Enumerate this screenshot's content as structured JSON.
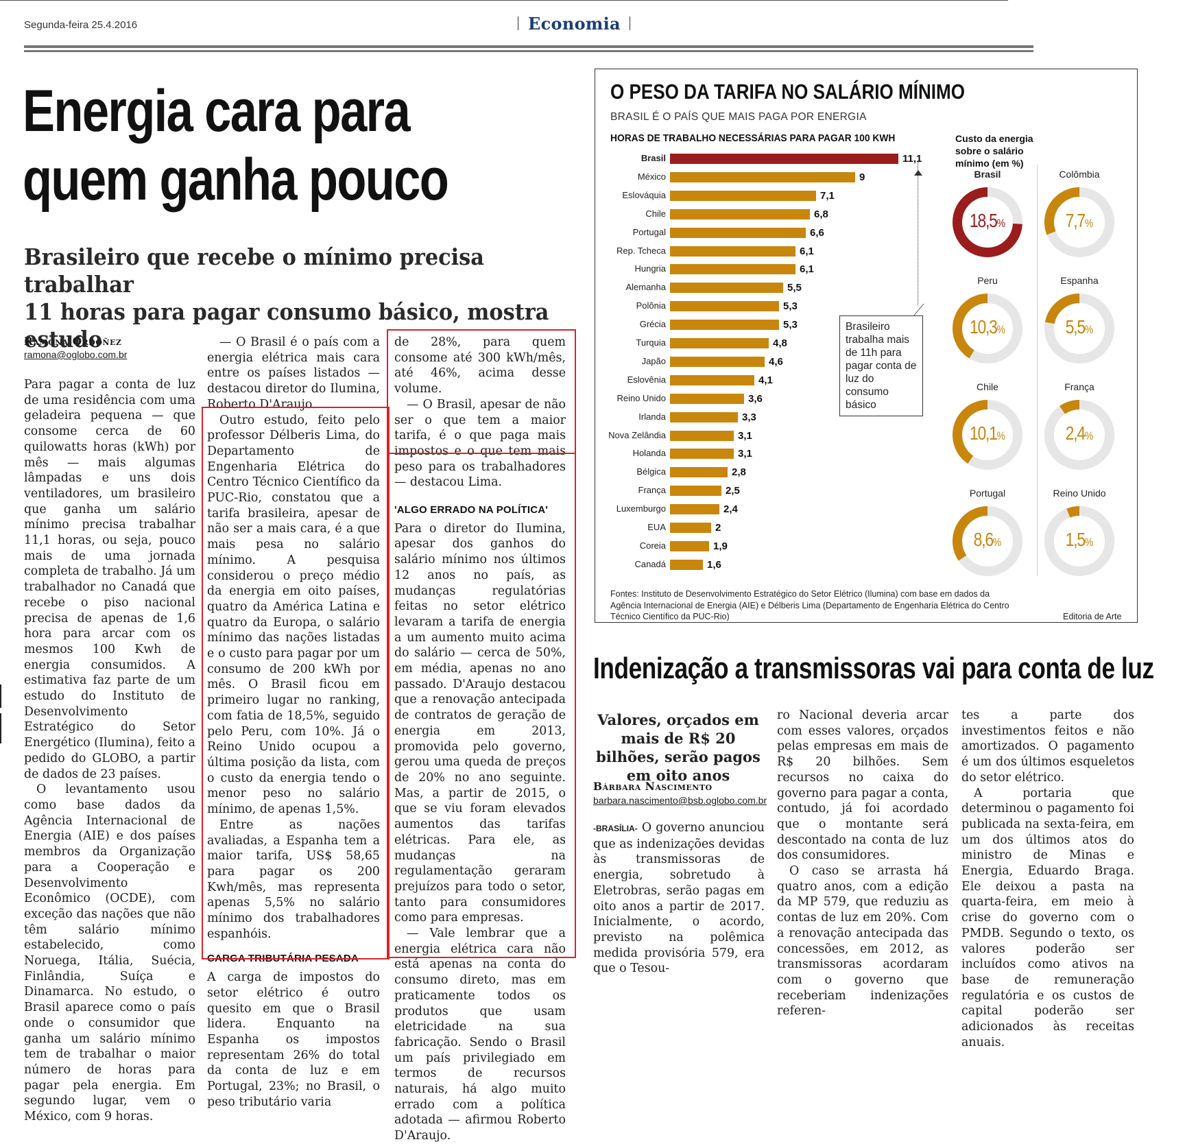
{
  "header": {
    "date": "Segunda-feira 25.4.2016",
    "section": "Economia"
  },
  "main_article": {
    "headline_line1": "Energia cara para",
    "headline_line2": "quem ganha pouco",
    "deck_line1": "Brasileiro que recebe o mínimo precisa trabalhar",
    "deck_line2": "11 horas para pagar consumo básico, mostra estudo",
    "author": "Ramona Ordoñez",
    "email": "ramona@oglobo.com.br",
    "col1_p1": "Para pagar a conta de luz de uma residência com uma geladeira pequena — que consome cerca de 60 quilowatts horas (kWh) por mês — mais algumas lâmpadas e uns dois ventiladores, um brasileiro que ganha um salário mínimo precisa trabalhar 11,1 horas, ou seja, pouco mais de uma jornada completa de trabalho. Já um trabalhador no Canadá que recebe o piso nacional precisa de apenas de 1,6 hora para arcar com os mesmos 100 Kwh de energia consumidos. A estimativa faz parte de um estudo do Instituto de Desenvolvimento Estratégico do Setor Energético (Ilumina), feito a pedido do GLOBO, a partir de dados de 23 países.",
    "col1_p2": "O levantamento usou como base dados da Agência Internacional de Energia (AIE) e dos países membros da Organização para a Cooperação e Desenvolvimento Econômico (OCDE), com exceção das nações que não têm salário mínimo estabelecido, como Noruega, Itália, Suécia, Finlândia, Suíça e Dinamarca. No estudo, o Brasil aparece como o país onde o consumidor que ganha um salário mínimo tem de trabalhar o maior número de horas para pagar pela energia. Em segundo lugar, vem o México, com 9 horas.",
    "col2_p1": "— O Brasil é o país com a energia elétrica mais cara entre os países listados — destacou diretor do Ilumina, Roberto D'Araujo.",
    "col2_p2": "Outro estudo, feito pelo professor Délberis Lima, do Departamento de Engenharia Elétrica do Centro Técnico Científico da PUC-Rio, constatou que a tarifa brasileira, apesar de não ser a mais cara, é a que mais pesa no salário mínimo. A pesquisa considerou o preço médio da energia em oito países, quatro da América Latina e quatro da Europa, o salário mínimo das nações listadas e o custo para pagar por um consumo de 200 kWh por mês. O Brasil ficou em primeiro lugar no ranking, com fatia de 18,5%, seguido pelo Peru, com 10%. Já o Reino Unido ocupou a última posição da lista, com o custo da energia tendo o menor peso no salário mínimo, de apenas 1,5%.",
    "col2_p3": "Entre as nações avaliadas, a Espanha tem a maior tarifa, US$ 58,65 para pagar os 200 Kwh/mês, mas representa apenas 5,5% no salário mínimo dos trabalhadores espanhóis.",
    "col2_subhead": "CARGA TRIBUTÁRIA PESADA",
    "col2_p4": "A carga de impostos do setor elétrico é outro quesito em que o Brasil lidera. Enquanto na Espanha os impostos representam 26% do total da conta de luz e em Portugal, 23%; no Brasil, o peso tributário varia",
    "col3_p1": "de 28%, para quem consome até 300 kWh/mês, até 46%, acima desse volume.",
    "col3_p2": "— O Brasil, apesar de não ser o que tem a maior tarifa, é o que paga mais impostos e o que tem mais peso para os trabalhadores — destacou Lima.",
    "col3_subhead": "'ALGO ERRADO NA POLÍTICA'",
    "col3_p3": "Para o diretor do Ilumina, apesar dos ganhos do salário mínimo nos últimos 12 anos no país, as mudanças regulatórias feitas no setor elétrico levaram a tarifa de energia a um aumento muito acima do salário — cerca de 50%, em média, apenas no ano passado. D'Araujo destacou que a renovação antecipada de contratos de geração de energia em 2013, promovida pelo governo, gerou uma queda de preços de 20% no ano seguinte. Mas, a partir de 2015, o que se viu foram elevados aumentos das tarifas elétricas. Para ele, as mudanças na regulamentação geraram prejuízos para todo o setor, tanto para consumidores como para empresas.",
    "col3_p4": "— Vale lembrar que a energia elétrica cara não está apenas na conta do consumo direto, mas em praticamente todos os produtos que usam eletricidade na sua fabricação. Sendo o Brasil um país privilegiado em termos de recursos naturais, há algo muito errado com a política adotada — afirmou Roberto D'Araujo."
  },
  "infographic": {
    "title": "O PESO DA TARIFA NO SALÁRIO MÍNIMO",
    "subtitle": "BRASIL É O PAÍS QUE MAIS PAGA POR ENERGIA",
    "bar_heading": "HORAS DE TRABALHO NECESSÁRIAS PARA PAGAR 100 KWH",
    "callout": "Brasileiro trabalha mais de 11h para pagar conta de luz do consumo básico",
    "donut_heading": "Custo da energia sobre o salário mínimo (em %)",
    "sources": "Fontes: Instituto de Desenvolvimento Estratégico do Setor Elétrico (Ilumina) com base em dados da Agência Internacional de Energia (AIE) e Délberis Lima (Departamento de Engenharia Elétrica do Centro Técnico Científico da PUC-Rio)",
    "credit": "Editoria de Arte",
    "colors": {
      "highlight": "#9b1c1c",
      "bar": "#c8860d",
      "ring": "#e6e6e6"
    }
  },
  "chart_data": [
    {
      "type": "bar",
      "title": "HORAS DE TRABALHO NECESSÁRIAS PARA PAGAR 100 KWH",
      "orientation": "horizontal",
      "categories": [
        "Brasil",
        "México",
        "Eslováquia",
        "Chile",
        "Portugal",
        "Rep. Tcheca",
        "Hungria",
        "Alemanha",
        "Polônia",
        "Grécia",
        "Turquia",
        "Japão",
        "Eslovênia",
        "Reino Unido",
        "Irlanda",
        "Nova Zelândia",
        "Holanda",
        "Bélgica",
        "França",
        "Luxemburgo",
        "EUA",
        "Coreia",
        "Canadá"
      ],
      "values": [
        11.1,
        9,
        7.1,
        6.8,
        6.6,
        6.1,
        6.1,
        5.5,
        5.3,
        5.3,
        4.8,
        4.6,
        4.1,
        3.6,
        3.3,
        3.1,
        3.1,
        2.8,
        2.5,
        2.4,
        2,
        1.9,
        1.6
      ],
      "value_labels": [
        "11,1",
        "9",
        "7,1",
        "6,8",
        "6,6",
        "6,1",
        "6,1",
        "5,5",
        "5,3",
        "5,3",
        "4,8",
        "4,6",
        "4,1",
        "3,6",
        "3,3",
        "3,1",
        "3,1",
        "2,8",
        "2,5",
        "2,4",
        "2",
        "1,9",
        "1,6"
      ],
      "grid": false
    },
    {
      "type": "pie",
      "title": "Custo da energia sobre o salário mínimo (em %)",
      "categories": [
        "Brasil",
        "Colômbia",
        "Peru",
        "Espanha",
        "Chile",
        "França",
        "Portugal",
        "Reino Unido"
      ],
      "values": [
        18.5,
        7.7,
        10.3,
        5.5,
        10.1,
        2.4,
        8.6,
        1.5
      ],
      "value_labels": [
        "18,5",
        "7,7",
        "10,3",
        "5,5",
        "10,1",
        "2,4",
        "8,6",
        "1,5"
      ],
      "unit": "%"
    }
  ],
  "second_article": {
    "headline": "Indenização a transmissoras vai para conta de luz",
    "deck": "Valores, orçados em mais de R$ 20 bilhões, serão pagos em oito anos",
    "author": "Bárbara Nascimento",
    "email": "barbara.nascimento@bsb.oglobo.com.br",
    "dateline": "-BRASÍLIA-",
    "col1_p1": "O governo anunciou que as indenizações devidas às transmissoras de energia, sobretudo à Eletrobras, serão pagas em oito anos a partir de 2017. Inicialmente, o acordo, previsto na polêmica medida provisória 579, era que o Tesou-",
    "col2_p1": "ro Nacional deveria arcar com esses valores, orçados pelas empresas em mais de R$ 20 bilhões. Sem recursos no caixa do governo para pagar a conta, contudo, já foi acordado que o montante será descontado na conta de luz dos consumidores.",
    "col2_p2": "O caso se arrasta há quatro anos, com a edição da MP 579, que reduziu as contas de luz em 20%. Com a renovação antecipada das concessões, em 2012, as transmissoras acordaram com o governo que receberiam indenizações referen-",
    "col3_p1": "tes a parte dos investimentos feitos e não amortizados. O pagamento é um dos últimos esqueletos do setor elétrico.",
    "col3_p2": "A portaria que determinou o pagamento foi publicada na sexta-feira, em um dos últimos atos do ministro de Minas e Energia, Eduardo Braga. Ele deixou a pasta na quarta-feira, em meio à crise do governo com o PMDB. Segundo o texto, os valores poderão ser incluídos como ativos na base de remuneração regulatória e os custos de capital poderão ser adicionados às receitas anuais."
  }
}
